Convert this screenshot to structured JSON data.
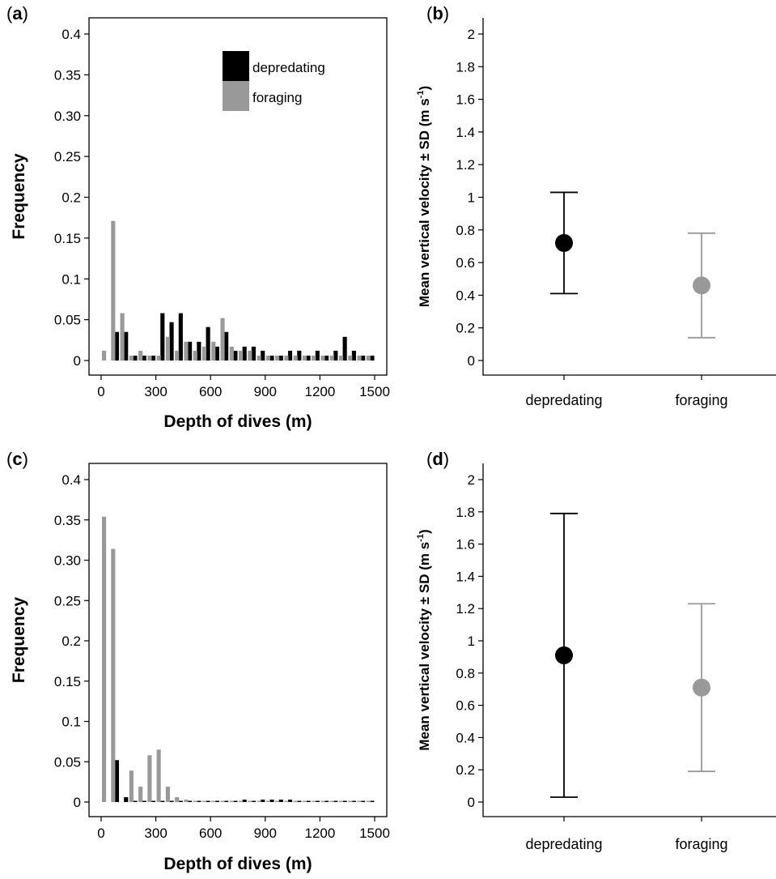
{
  "chart_data": [
    {
      "panel": "(a)",
      "type": "bar",
      "xlabel": "Depth of dives (m)",
      "ylabel": "Frequency",
      "xlim": [
        0,
        1500
      ],
      "ylim": [
        0,
        0.42
      ],
      "x_ticks": [
        "0",
        "300",
        "600",
        "900",
        "1200",
        "1500"
      ],
      "y_ticks": [
        "0",
        "0.05",
        "0.1",
        "0.15",
        "0.2",
        "0.25",
        "0.30",
        "0.35",
        "0.4"
      ],
      "bin_width": 50,
      "legend": {
        "position": "top-right"
      },
      "series": [
        {
          "name": "depredating",
          "color": "#000000",
          "values": [
            0,
            0.035,
            0.035,
            0.006,
            0.006,
            0.006,
            0.058,
            0.047,
            0.058,
            0.023,
            0.023,
            0.041,
            0.017,
            0.035,
            0.012,
            0.017,
            0.017,
            0.012,
            0.006,
            0.006,
            0.012,
            0.012,
            0.006,
            0.012,
            0.006,
            0.012,
            0.029,
            0.012,
            0.006,
            0.006
          ]
        },
        {
          "name": "foraging",
          "color": "#999999",
          "values": [
            0.012,
            0.171,
            0.058,
            0.006,
            0.012,
            0.006,
            0.006,
            0.029,
            0.012,
            0.023,
            0.012,
            0.017,
            0.023,
            0.052,
            0.017,
            0.012,
            0.012,
            0.006,
            0.006,
            0.006,
            0.006,
            0.006,
            0.006,
            0.006,
            0.006,
            0.006,
            0.006,
            0.006,
            0.006,
            0.006
          ]
        }
      ]
    },
    {
      "panel": "(b)",
      "type": "scatter",
      "error_bars": true,
      "ylabel": "Mean vertical velocity ± SD (m s",
      "ylabel_superscript": "-1",
      "ylabel_close": ")",
      "ylim": [
        0,
        2
      ],
      "y_ticks": [
        "0",
        "0.2",
        "0.4",
        "0.6",
        "0.8",
        "1",
        "1.2",
        "1.4",
        "1.6",
        "1.8",
        "2"
      ],
      "categories": [
        "depredating",
        "foraging"
      ],
      "means": [
        0.72,
        0.46
      ],
      "sd": [
        0.31,
        0.32
      ],
      "colors": [
        "#000000",
        "#999999"
      ]
    },
    {
      "panel": "(c)",
      "type": "bar",
      "xlabel": "Depth of dives (m)",
      "ylabel": "Frequency",
      "xlim": [
        0,
        1500
      ],
      "ylim": [
        0,
        0.42
      ],
      "x_ticks": [
        "0",
        "300",
        "600",
        "900",
        "1200",
        "1500"
      ],
      "y_ticks": [
        "0",
        "0.05",
        "0.1",
        "0.15",
        "0.2",
        "0.25",
        "0.30",
        "0.35",
        "0.4"
      ],
      "bin_width": 50,
      "series": [
        {
          "name": "depredating",
          "color": "#000000",
          "values": [
            0,
            0.052,
            0.006,
            0.0015,
            0.0015,
            0.0015,
            0.0015,
            0.0015,
            0.0015,
            0.0015,
            0.0015,
            0.0015,
            0.0015,
            0.0015,
            0.0015,
            0.003,
            0.0015,
            0.003,
            0.003,
            0.003,
            0.003,
            0.0015,
            0.0015,
            0.0015,
            0.0015,
            0.0015,
            0.0015,
            0.0015,
            0.0015,
            0.0015
          ]
        },
        {
          "name": "foraging",
          "color": "#999999",
          "values": [
            0.354,
            0.314,
            0,
            0.039,
            0.019,
            0.058,
            0.065,
            0.019,
            0.006,
            0.003,
            0.0015,
            0.0015,
            0.0015,
            0.0015,
            0.0015,
            0.0015,
            0.0015,
            0.0015,
            0.0015,
            0.0015,
            0.0015,
            0.0015,
            0.0015,
            0.0015,
            0.0015,
            0.0015,
            0.0015,
            0.0015,
            0.0015,
            0.0015
          ]
        }
      ]
    },
    {
      "panel": "(d)",
      "type": "scatter",
      "error_bars": true,
      "ylabel": "Mean vertical velocity ± SD (m s",
      "ylabel_superscript": "-1",
      "ylabel_close": ")",
      "ylim": [
        0,
        2
      ],
      "y_ticks": [
        "0",
        "0.2",
        "0.4",
        "0.6",
        "0.8",
        "1",
        "1.2",
        "1.4",
        "1.6",
        "1.8",
        "2"
      ],
      "categories": [
        "depredating",
        "foraging"
      ],
      "means": [
        0.91,
        0.71
      ],
      "sd": [
        0.88,
        0.52
      ],
      "colors": [
        "#000000",
        "#999999"
      ]
    }
  ]
}
